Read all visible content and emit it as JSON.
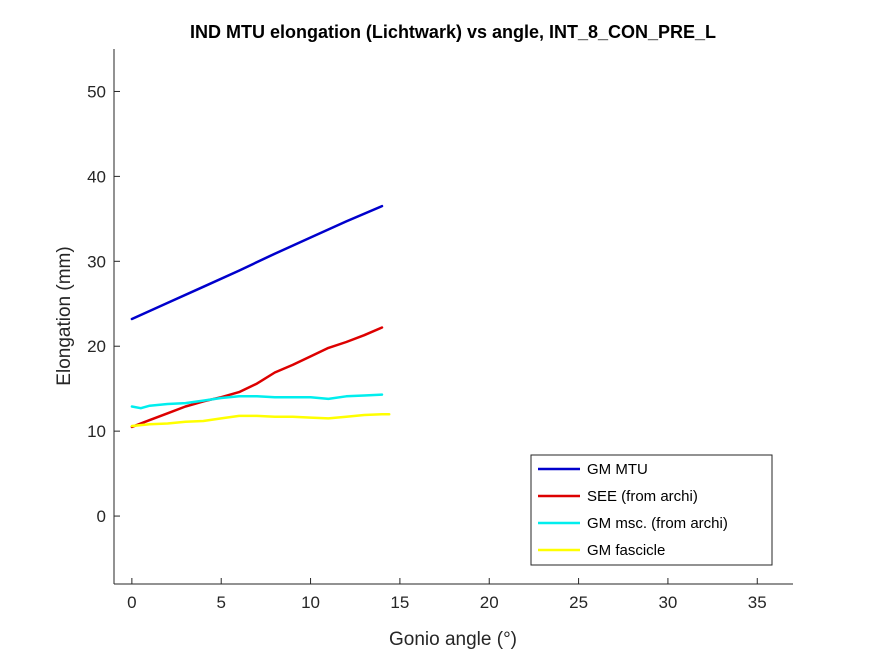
{
  "chart_data": {
    "type": "line",
    "title": "IND MTU elongation (Lichtwark) vs angle, INT_8_CON_PRE_L",
    "xlabel": "Gonio angle (°)",
    "ylabel": "Elongation (mm)",
    "xlim": [
      -1,
      37
    ],
    "ylim": [
      -8,
      55
    ],
    "xticks": [
      0,
      5,
      10,
      15,
      20,
      25,
      30,
      35
    ],
    "yticks": [
      0,
      10,
      20,
      30,
      40,
      50
    ],
    "grid": false,
    "legend_position": "bottom-right",
    "series": [
      {
        "name": "GM MTU",
        "color": "#0000cc",
        "x": [
          0,
          2,
          4,
          6,
          8,
          10,
          12,
          14
        ],
        "y": [
          23.2,
          25.1,
          27.0,
          28.9,
          30.9,
          32.8,
          34.7,
          36.5
        ]
      },
      {
        "name": "SEE (from archi)",
        "color": "#dd0000",
        "x": [
          0,
          1,
          2,
          3,
          4,
          5,
          6,
          7,
          8,
          9,
          10,
          11,
          12,
          13,
          14
        ],
        "y": [
          10.5,
          11.3,
          12.1,
          12.9,
          13.5,
          14.0,
          14.6,
          15.6,
          16.9,
          17.8,
          18.8,
          19.8,
          20.5,
          21.3,
          22.2
        ]
      },
      {
        "name": "GM msc. (from archi)",
        "color": "#00eeee",
        "x": [
          0,
          0.5,
          1,
          2,
          3,
          4,
          5,
          6,
          7,
          8,
          9,
          10,
          11,
          12,
          13,
          14
        ],
        "y": [
          12.9,
          12.7,
          13.0,
          13.2,
          13.3,
          13.6,
          13.9,
          14.1,
          14.1,
          14.0,
          14.0,
          14.0,
          13.8,
          14.1,
          14.2,
          14.3
        ]
      },
      {
        "name": "GM fascicle",
        "color": "#ffff00",
        "x": [
          0,
          1,
          2,
          3,
          4,
          5,
          6,
          7,
          8,
          9,
          10,
          11,
          12,
          13,
          14,
          14.4
        ],
        "y": [
          10.6,
          10.8,
          10.9,
          11.1,
          11.2,
          11.5,
          11.8,
          11.8,
          11.7,
          11.7,
          11.6,
          11.5,
          11.7,
          11.9,
          12.0,
          12.0
        ]
      }
    ]
  }
}
